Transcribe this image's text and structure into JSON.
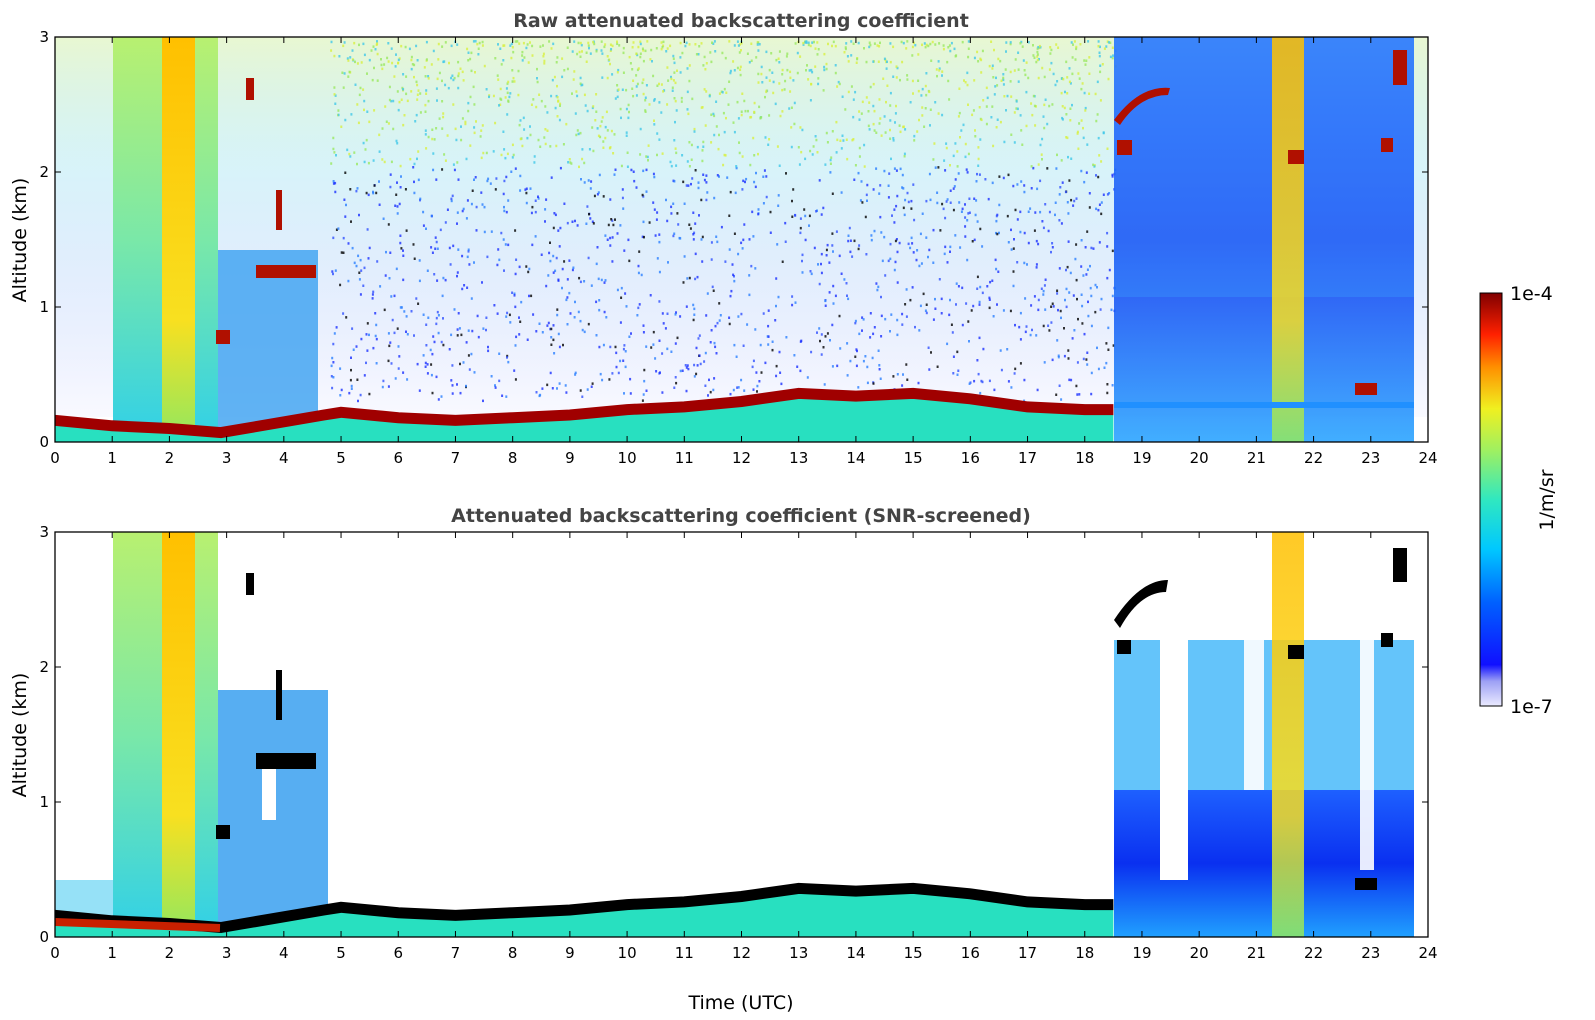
{
  "chart_data": [
    {
      "type": "heatmap",
      "title": "Raw attenuated backscattering coefficient",
      "xlabel": "",
      "ylabel": "Altitude (km)",
      "xlim": [
        0,
        24
      ],
      "ylim": [
        0,
        3
      ],
      "x_ticks": [
        "0",
        "1",
        "2",
        "3",
        "4",
        "5",
        "6",
        "7",
        "8",
        "9",
        "10",
        "11",
        "12",
        "13",
        "14",
        "15",
        "16",
        "17",
        "18",
        "19",
        "20",
        "21",
        "22",
        "23",
        "24"
      ],
      "y_ticks": [
        "0",
        "1",
        "2",
        "3"
      ],
      "boundary_layer_top_km": [
        [
          0,
          0.16
        ],
        [
          1,
          0.12
        ],
        [
          2,
          0.1
        ],
        [
          2.9,
          0.07
        ],
        [
          4.7,
          0.2
        ],
        [
          5,
          0.22
        ],
        [
          6,
          0.18
        ],
        [
          7,
          0.16
        ],
        [
          8,
          0.18
        ],
        [
          9,
          0.2
        ],
        [
          10,
          0.24
        ],
        [
          11,
          0.26
        ],
        [
          12,
          0.3
        ],
        [
          13,
          0.36
        ],
        [
          14,
          0.34
        ],
        [
          15,
          0.36
        ],
        [
          16,
          0.32
        ],
        [
          17,
          0.26
        ],
        [
          18,
          0.24
        ],
        [
          18.5,
          0.24
        ]
      ],
      "cloud_columns_utc": [
        [
          1.1,
          2.85
        ],
        [
          21.3,
          21.8
        ]
      ],
      "high_noise_period_utc": [
        18.5,
        23.8
      ]
    },
    {
      "type": "heatmap",
      "title": "Attenuated backscattering coefficient (SNR-screened)",
      "xlabel": "Time (UTC)",
      "ylabel": "Altitude (km)",
      "xlim": [
        0,
        24
      ],
      "ylim": [
        0,
        3
      ],
      "x_ticks": [
        "0",
        "1",
        "2",
        "3",
        "4",
        "5",
        "6",
        "7",
        "8",
        "9",
        "10",
        "11",
        "12",
        "13",
        "14",
        "15",
        "16",
        "17",
        "18",
        "19",
        "20",
        "21",
        "22",
        "23",
        "24"
      ],
      "y_ticks": [
        "0",
        "1",
        "2",
        "3"
      ],
      "boundary_layer_top_km": [
        [
          0,
          0.16
        ],
        [
          1,
          0.12
        ],
        [
          2,
          0.1
        ],
        [
          2.9,
          0.07
        ],
        [
          4.7,
          0.2
        ],
        [
          5,
          0.22
        ],
        [
          6,
          0.18
        ],
        [
          7,
          0.16
        ],
        [
          8,
          0.18
        ],
        [
          9,
          0.2
        ],
        [
          10,
          0.24
        ],
        [
          11,
          0.26
        ],
        [
          12,
          0.3
        ],
        [
          13,
          0.36
        ],
        [
          14,
          0.34
        ],
        [
          15,
          0.36
        ],
        [
          16,
          0.32
        ],
        [
          17,
          0.26
        ],
        [
          18,
          0.24
        ],
        [
          18.5,
          0.24
        ]
      ]
    }
  ],
  "colorbar": {
    "label": "1/m/sr",
    "max_label": "1e-4",
    "min_label": "1e-7",
    "scale": "log",
    "colormap": "jet"
  }
}
